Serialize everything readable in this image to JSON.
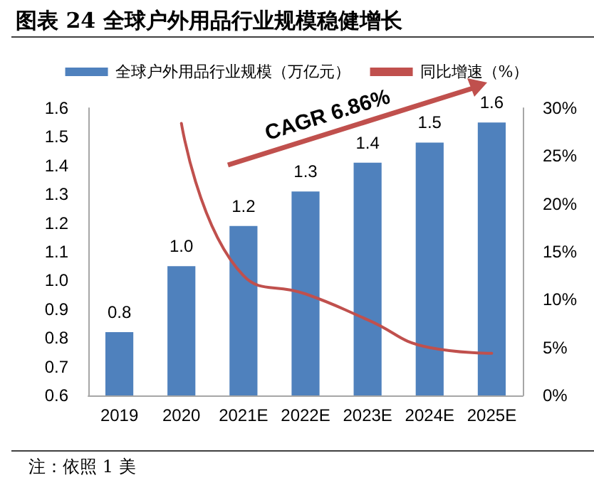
{
  "chart_data": {
    "type": "bar",
    "title": "图表 24 全球户外用品行业规模稳健增长",
    "categories": [
      "2019",
      "2020",
      "2021E",
      "2022E",
      "2023E",
      "2024E",
      "2025E"
    ],
    "series": [
      {
        "name": "全球户外用品行业规模（万亿元）",
        "color": "#4f81bd",
        "values": [
          0.82,
          1.05,
          1.19,
          1.31,
          1.41,
          1.48,
          1.55
        ],
        "value_labels": [
          "0.8",
          "1.0",
          "1.2",
          "1.3",
          "1.4",
          "1.5",
          "1.6"
        ]
      },
      {
        "name": "同比增速（%）",
        "type": "line",
        "axis": "y2",
        "color": "#c0504d",
        "values": [
          null,
          28.4,
          12.5,
          10.6,
          7.9,
          5.0,
          4.4
        ]
      }
    ],
    "ylim": [
      0.6,
      1.6
    ],
    "yticks": [
      0.6,
      0.7,
      0.8,
      0.9,
      {
        "value": 1,
        "label": "1.0"
      },
      1.1,
      1.2,
      1.3,
      1.4,
      1.5,
      1.6
    ],
    "y2lim": [
      0,
      30
    ],
    "y2ticks": [
      {
        "value": 0,
        "label": "0%"
      },
      {
        "value": 5,
        "label": "5%"
      },
      {
        "value": 10,
        "label": "10%"
      },
      {
        "value": 15,
        "label": "15%"
      },
      {
        "value": 20,
        "label": "20%"
      },
      {
        "value": 25,
        "label": "25%"
      },
      {
        "value": 30,
        "label": "30%"
      }
    ],
    "annotations": [
      "CAGR 6.86%",
      "注：依照 1 美"
    ],
    "legend": "top",
    "grid": false,
    "marker": "none",
    "line_style": "solid"
  }
}
